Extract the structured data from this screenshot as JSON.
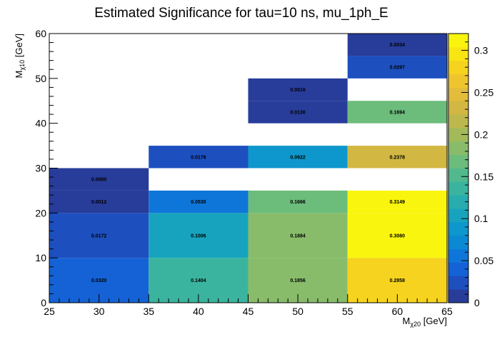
{
  "chart_data": {
    "type": "heatmap",
    "title": "Estimated Significance for tau=10 ns, mu_1ph_E",
    "xlabel": {
      "main": "M",
      "sub": "χ20",
      "unit": " [GeV]"
    },
    "ylabel": {
      "main": "M",
      "sub": "χ10",
      "unit": " [GeV]"
    },
    "xlim": [
      25,
      65
    ],
    "ylim": [
      0,
      60
    ],
    "zlim": [
      0,
      0.32
    ],
    "x_ticks": [
      25,
      30,
      35,
      40,
      45,
      50,
      55,
      60,
      65
    ],
    "y_ticks": [
      0,
      10,
      20,
      30,
      40,
      50,
      60
    ],
    "z_ticks": [
      0,
      0.05,
      0.1,
      0.15,
      0.2,
      0.25,
      0.3
    ],
    "z_tick_labels": [
      "0",
      "0.05",
      "0.1",
      "0.15",
      "0.2",
      "0.25",
      "0.3"
    ],
    "cells": [
      {
        "x0": 25,
        "x1": 35,
        "y0": 0,
        "y1": 10,
        "value": 0.032,
        "label": "0.0320"
      },
      {
        "x0": 35,
        "x1": 45,
        "y0": 0,
        "y1": 10,
        "value": 0.1404,
        "label": "0.1404"
      },
      {
        "x0": 45,
        "x1": 55,
        "y0": 0,
        "y1": 10,
        "value": 0.1856,
        "label": "0.1856"
      },
      {
        "x0": 55,
        "x1": 65,
        "y0": 0,
        "y1": 10,
        "value": 0.2858,
        "label": "0.2858"
      },
      {
        "x0": 25,
        "x1": 35,
        "y0": 10,
        "y1": 20,
        "value": 0.0172,
        "label": "0.0172"
      },
      {
        "x0": 35,
        "x1": 45,
        "y0": 10,
        "y1": 20,
        "value": 0.1006,
        "label": "0.1006"
      },
      {
        "x0": 45,
        "x1": 55,
        "y0": 10,
        "y1": 20,
        "value": 0.1884,
        "label": "0.1884"
      },
      {
        "x0": 55,
        "x1": 65,
        "y0": 10,
        "y1": 20,
        "value": 0.308,
        "label": "0.3080"
      },
      {
        "x0": 25,
        "x1": 35,
        "y0": 20,
        "y1": 25,
        "value": 0.0012,
        "label": "0.0012"
      },
      {
        "x0": 35,
        "x1": 45,
        "y0": 20,
        "y1": 25,
        "value": 0.053,
        "label": "0.0530"
      },
      {
        "x0": 45,
        "x1": 55,
        "y0": 20,
        "y1": 25,
        "value": 0.1666,
        "label": "0.1666"
      },
      {
        "x0": 55,
        "x1": 65,
        "y0": 20,
        "y1": 25,
        "value": 0.3149,
        "label": "0.3149"
      },
      {
        "x0": 25,
        "x1": 35,
        "y0": 25,
        "y1": 30,
        "value": 0.006,
        "label": "0.0060"
      },
      {
        "x0": 35,
        "x1": 45,
        "y0": 30,
        "y1": 35,
        "value": 0.0176,
        "label": "0.0176"
      },
      {
        "x0": 45,
        "x1": 55,
        "y0": 30,
        "y1": 35,
        "value": 0.0922,
        "label": "0.0922"
      },
      {
        "x0": 55,
        "x1": 65,
        "y0": 30,
        "y1": 35,
        "value": 0.2378,
        "label": "0.2378"
      },
      {
        "x0": 45,
        "x1": 55,
        "y0": 40,
        "y1": 45,
        "value": 0.013,
        "label": "0.0130"
      },
      {
        "x0": 55,
        "x1": 65,
        "y0": 40,
        "y1": 45,
        "value": 0.1694,
        "label": "0.1694"
      },
      {
        "x0": 45,
        "x1": 55,
        "y0": 45,
        "y1": 50,
        "value": 0.0016,
        "label": "0.0016"
      },
      {
        "x0": 55,
        "x1": 65,
        "y0": 50,
        "y1": 55,
        "value": 0.0297,
        "label": "0.0297"
      },
      {
        "x0": 55,
        "x1": 65,
        "y0": 55,
        "y1": 60,
        "value": 0.0034,
        "label": "0.0034"
      }
    ],
    "palette": [
      "#283c9a",
      "#1d4fbf",
      "#1462d6",
      "#0f76d9",
      "#0b89d3",
      "#0d97cc",
      "#17a3bd",
      "#28acae",
      "#3ab49e",
      "#51b98d",
      "#6cbc7b",
      "#88bc6a",
      "#a3ba5b",
      "#bcb84d",
      "#d2b743",
      "#e2bc3a",
      "#efc52d",
      "#f6d31e",
      "#f9e414",
      "#f9f50e"
    ],
    "grid": false,
    "legend": "right colorbar"
  }
}
